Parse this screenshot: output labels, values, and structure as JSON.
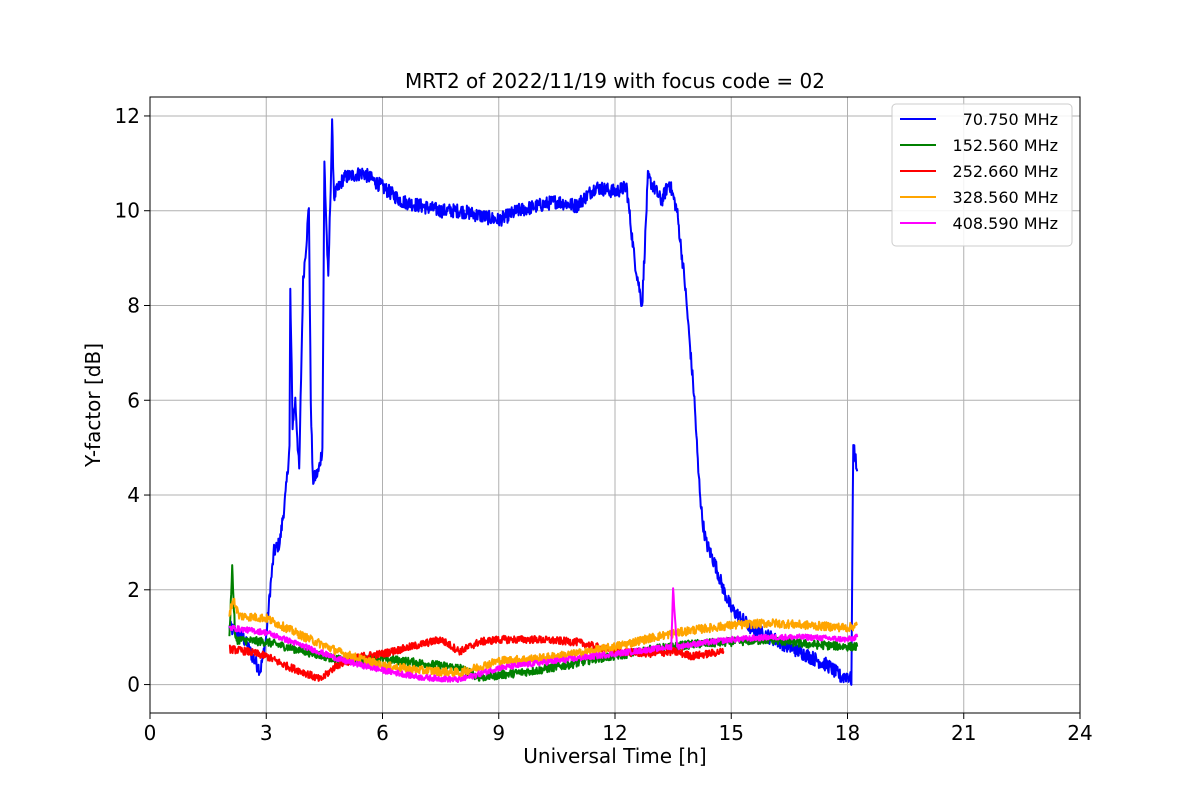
{
  "chart_data": {
    "type": "line",
    "title": "MRT2 of 2022/11/19 with focus code = 02",
    "xlabel": "Universal Time [h]",
    "ylabel": "Y-factor [dB]",
    "xlim": [
      0,
      24
    ],
    "ylim": [
      -0.6,
      12.4
    ],
    "xticks": [
      0,
      3,
      6,
      9,
      12,
      15,
      18,
      21,
      24
    ],
    "yticks": [
      0,
      2,
      4,
      6,
      8,
      10,
      12
    ],
    "grid": true,
    "legend_position": "top-right",
    "series": [
      {
        "name": "70.750 MHz",
        "color": "#0000ff",
        "noise": 0.15,
        "points": [
          [
            2.05,
            1.2
          ],
          [
            2.4,
            1.0
          ],
          [
            2.7,
            0.5
          ],
          [
            2.85,
            0.3
          ],
          [
            3.0,
            1.0
          ],
          [
            3.1,
            2.0
          ],
          [
            3.2,
            2.8
          ],
          [
            3.35,
            3.0
          ],
          [
            3.5,
            4.0
          ],
          [
            3.6,
            5.0
          ],
          [
            3.62,
            8.3
          ],
          [
            3.68,
            5.5
          ],
          [
            3.75,
            6.0
          ],
          [
            3.85,
            4.5
          ],
          [
            3.95,
            8.5
          ],
          [
            4.05,
            9.5
          ],
          [
            4.1,
            10.1
          ],
          [
            4.15,
            6.0
          ],
          [
            4.2,
            4.3
          ],
          [
            4.35,
            4.5
          ],
          [
            4.45,
            5.0
          ],
          [
            4.5,
            11.0
          ],
          [
            4.6,
            8.5
          ],
          [
            4.7,
            11.8
          ],
          [
            4.75,
            10.3
          ],
          [
            5.0,
            10.7
          ],
          [
            5.5,
            10.8
          ],
          [
            6.0,
            10.5
          ],
          [
            6.5,
            10.2
          ],
          [
            7.0,
            10.1
          ],
          [
            7.5,
            10.0
          ],
          [
            8.0,
            10.0
          ],
          [
            8.5,
            9.9
          ],
          [
            9.0,
            9.8
          ],
          [
            9.5,
            10.0
          ],
          [
            10.0,
            10.1
          ],
          [
            10.5,
            10.2
          ],
          [
            11.0,
            10.1
          ],
          [
            11.5,
            10.5
          ],
          [
            12.0,
            10.4
          ],
          [
            12.3,
            10.5
          ],
          [
            12.5,
            9.0
          ],
          [
            12.7,
            8.0
          ],
          [
            12.85,
            10.7
          ],
          [
            13.0,
            10.5
          ],
          [
            13.2,
            10.2
          ],
          [
            13.4,
            10.6
          ],
          [
            13.6,
            10.0
          ],
          [
            13.8,
            8.5
          ],
          [
            13.95,
            7.0
          ],
          [
            14.05,
            6.0
          ],
          [
            14.15,
            4.5
          ],
          [
            14.25,
            3.5
          ],
          [
            14.35,
            3.0
          ],
          [
            14.6,
            2.5
          ],
          [
            14.8,
            2.0
          ],
          [
            15.0,
            1.6
          ],
          [
            15.5,
            1.2
          ],
          [
            16.0,
            1.0
          ],
          [
            16.5,
            0.8
          ],
          [
            17.0,
            0.6
          ],
          [
            17.5,
            0.4
          ],
          [
            17.85,
            0.15
          ],
          [
            18.0,
            0.2
          ],
          [
            18.1,
            0.1
          ],
          [
            18.15,
            5.1
          ],
          [
            18.25,
            4.5
          ]
        ]
      },
      {
        "name": "152.560 MHz",
        "color": "#008000",
        "noise": 0.09,
        "points": [
          [
            2.05,
            0.95
          ],
          [
            2.12,
            2.5
          ],
          [
            2.2,
            0.95
          ],
          [
            3.0,
            0.9
          ],
          [
            4.0,
            0.7
          ],
          [
            4.5,
            0.6
          ],
          [
            5.0,
            0.5
          ],
          [
            6.0,
            0.55
          ],
          [
            7.0,
            0.45
          ],
          [
            8.0,
            0.35
          ],
          [
            8.5,
            0.15
          ],
          [
            9.0,
            0.2
          ],
          [
            10.0,
            0.3
          ],
          [
            11.0,
            0.45
          ],
          [
            11.5,
            0.55
          ],
          [
            12.0,
            0.6
          ],
          [
            13.0,
            0.75
          ],
          [
            13.5,
            0.8
          ],
          [
            14.0,
            0.85
          ],
          [
            15.0,
            0.9
          ],
          [
            16.0,
            0.95
          ],
          [
            17.0,
            0.85
          ],
          [
            18.0,
            0.8
          ],
          [
            18.25,
            0.8
          ]
        ]
      },
      {
        "name": "252.660 MHz",
        "color": "#ff0000",
        "noise": 0.08,
        "points": [
          [
            2.05,
            0.75
          ],
          [
            2.5,
            0.7
          ],
          [
            3.0,
            0.6
          ],
          [
            3.5,
            0.4
          ],
          [
            4.0,
            0.25
          ],
          [
            4.4,
            0.1
          ],
          [
            4.8,
            0.4
          ],
          [
            5.5,
            0.6
          ],
          [
            6.0,
            0.65
          ],
          [
            7.0,
            0.85
          ],
          [
            7.5,
            0.95
          ],
          [
            8.0,
            0.7
          ],
          [
            8.5,
            0.9
          ],
          [
            9.0,
            0.95
          ],
          [
            10.0,
            0.95
          ],
          [
            11.0,
            0.9
          ],
          [
            12.0,
            0.7
          ],
          [
            13.0,
            0.65
          ],
          [
            13.5,
            0.7
          ],
          [
            14.0,
            0.6
          ],
          [
            14.8,
            0.7
          ]
        ]
      },
      {
        "name": "328.560 MHz",
        "color": "#ffa500",
        "noise": 0.09,
        "points": [
          [
            2.05,
            1.5
          ],
          [
            2.15,
            1.8
          ],
          [
            2.3,
            1.45
          ],
          [
            3.0,
            1.4
          ],
          [
            4.0,
            1.0
          ],
          [
            5.0,
            0.65
          ],
          [
            6.0,
            0.4
          ],
          [
            7.0,
            0.3
          ],
          [
            8.0,
            0.25
          ],
          [
            9.0,
            0.5
          ],
          [
            10.0,
            0.55
          ],
          [
            11.0,
            0.65
          ],
          [
            12.0,
            0.8
          ],
          [
            13.0,
            1.0
          ],
          [
            14.0,
            1.15
          ],
          [
            15.0,
            1.25
          ],
          [
            16.0,
            1.3
          ],
          [
            17.0,
            1.25
          ],
          [
            18.0,
            1.2
          ],
          [
            18.25,
            1.25
          ]
        ]
      },
      {
        "name": "408.590 MHz",
        "color": "#ff00ff",
        "noise": 0.06,
        "points": [
          [
            2.05,
            1.2
          ],
          [
            3.0,
            1.1
          ],
          [
            4.0,
            0.8
          ],
          [
            5.0,
            0.5
          ],
          [
            6.0,
            0.3
          ],
          [
            7.0,
            0.15
          ],
          [
            8.0,
            0.1
          ],
          [
            9.0,
            0.35
          ],
          [
            10.0,
            0.45
          ],
          [
            11.0,
            0.55
          ],
          [
            12.0,
            0.65
          ],
          [
            13.0,
            0.75
          ],
          [
            13.45,
            0.8
          ],
          [
            13.5,
            2.0
          ],
          [
            13.6,
            0.8
          ],
          [
            14.0,
            0.85
          ],
          [
            15.0,
            0.95
          ],
          [
            16.0,
            1.0
          ],
          [
            17.0,
            1.0
          ],
          [
            18.0,
            0.95
          ],
          [
            18.25,
            1.0
          ]
        ]
      }
    ]
  }
}
